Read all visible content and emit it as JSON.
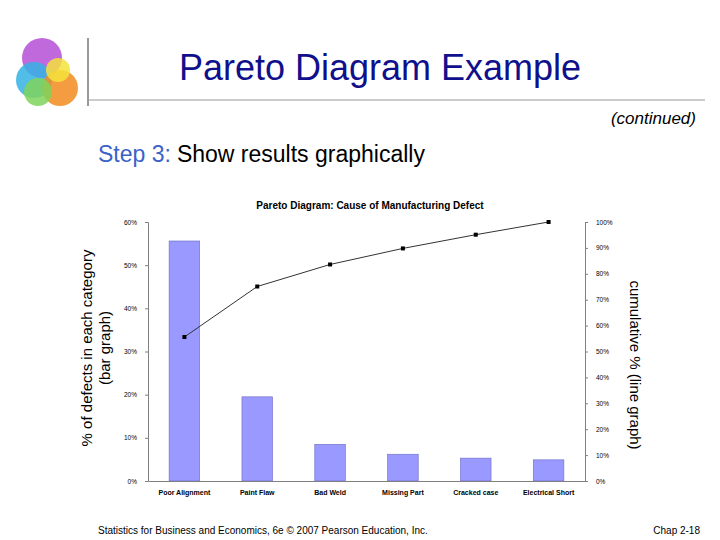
{
  "slide": {
    "title": "Pareto Diagram Example",
    "subtitle": "(continued)",
    "step_label": "Step 3:",
    "step_text": "Show results graphically",
    "footer_left": "Statistics for Business and Economics, 6e © 2007 Pearson Education, Inc.",
    "footer_right": "Chap 2-18"
  },
  "chart_data": {
    "type": "bar",
    "title": "Pareto Diagram: Cause of Manufacturing Defect",
    "categories": [
      "Poor Alignment",
      "Paint Flaw",
      "Bad Weld",
      "Missing Part",
      "Cracked case",
      "Electrical Short"
    ],
    "y_label": [
      "% of defects in each category",
      "(bar graph)"
    ],
    "y2_label": "cumulative % (line graph)",
    "ylim": [
      0,
      60
    ],
    "yticks": [
      {
        "value": 0,
        "label": "0%"
      },
      {
        "value": 10,
        "label": "10%"
      },
      {
        "value": 20,
        "label": "20%"
      },
      {
        "value": 30,
        "label": "30%"
      },
      {
        "value": 40,
        "label": "40%"
      },
      {
        "value": 50,
        "label": "50%"
      },
      {
        "value": 60,
        "label": "60%"
      }
    ],
    "y2lim": [
      0,
      100
    ],
    "y2ticks": [
      {
        "value": 0,
        "label": "0%"
      },
      {
        "value": 10,
        "label": "10%"
      },
      {
        "value": 20,
        "label": "20%"
      },
      {
        "value": 30,
        "label": "30%"
      },
      {
        "value": 40,
        "label": "40%"
      },
      {
        "value": 50,
        "label": "50%"
      },
      {
        "value": 60,
        "label": "60%"
      },
      {
        "value": 70,
        "label": "70%"
      },
      {
        "value": 80,
        "label": "80%"
      },
      {
        "value": 90,
        "label": "90%"
      },
      {
        "value": 100,
        "label": "100%"
      }
    ],
    "grid": false,
    "series": [
      {
        "type": "bar",
        "color": "#9999ff",
        "values": [
          55.6,
          19.5,
          8.5,
          6.2,
          5.3,
          4.9
        ]
      },
      {
        "type": "line",
        "axis": "y2",
        "color": "#333333",
        "marker": "square",
        "values": [
          55.6,
          75.1,
          83.6,
          89.8,
          95.1,
          100
        ]
      }
    ]
  }
}
